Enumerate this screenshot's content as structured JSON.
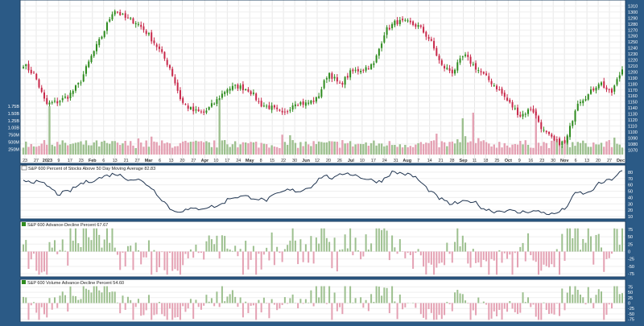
{
  "chart_data": [
    {
      "type": "candlestick",
      "title": "",
      "date_labels": [
        "23",
        "27",
        "2023",
        "9",
        "17",
        "23",
        "Feb",
        "6",
        "13",
        "21",
        "27",
        "Mar",
        "6",
        "13",
        "20",
        "27",
        "Apr",
        "10",
        "17",
        "24",
        "May",
        "8",
        "15",
        "22",
        "30",
        "Jun",
        "12",
        "20",
        "26",
        "Jul",
        "10",
        "17",
        "24",
        "31",
        "Aug",
        "7",
        "14",
        "21",
        "28",
        "Sep",
        "11",
        "18",
        "25",
        "Oct",
        "9",
        "16",
        "23",
        "30",
        "Nov",
        "6",
        "13",
        "20",
        "27",
        "Dec"
      ],
      "price_axis": {
        "ticks": [
          1070,
          1080,
          1090,
          1100,
          1110,
          1120,
          1130,
          1140,
          1150,
          1160,
          1170,
          1180,
          1190,
          1200,
          1210,
          1220,
          1230,
          1240,
          1250,
          1260,
          1270,
          1280,
          1290,
          1300,
          1310
        ],
        "ylim": [
          1065,
          1316
        ]
      },
      "closes_anchor": [
        1213,
        1195,
        1146,
        1150,
        1160,
        1182,
        1225,
        1262,
        1305,
        1290,
        1283,
        1264,
        1238,
        1206,
        1150,
        1135,
        1132,
        1150,
        1172,
        1176,
        1170,
        1146,
        1140,
        1128,
        1150,
        1147,
        1155,
        1200,
        1178,
        1200,
        1205,
        1212,
        1268,
        1284,
        1282,
        1276,
        1253,
        1210,
        1200,
        1228,
        1208,
        1190,
        1172,
        1148,
        1127,
        1140,
        1102,
        1084,
        1081,
        1150,
        1162,
        1184,
        1163,
        1205
      ],
      "volume_axis": {
        "ticks": [
          "1.75B",
          "1.50B",
          "1.25B",
          "1.00B",
          "750M",
          "500M",
          "250M"
        ]
      }
    },
    {
      "type": "line",
      "legend": "S&P 600 Percent of Stocks Above 50 Day Moving Average 82.83",
      "y_ticks": [
        80,
        70,
        60,
        50,
        40,
        30,
        20,
        10
      ],
      "ylim": [
        10,
        85
      ],
      "anchor_values": [
        68,
        65,
        60,
        45,
        50,
        62,
        67,
        73,
        78,
        70,
        68,
        58,
        38,
        18,
        20,
        22,
        25,
        27,
        40,
        42,
        40,
        35,
        45,
        52,
        50,
        58,
        75,
        70,
        80,
        74,
        68,
        65,
        80,
        78,
        73,
        55,
        40,
        30,
        32,
        35,
        22,
        18,
        20,
        16,
        19,
        17,
        13,
        22,
        48,
        46,
        62,
        68,
        82
      ]
    },
    {
      "type": "bar",
      "legend": "S&P 600 Advance-Decline Percent 67.67",
      "y_ticks": [
        75,
        50,
        25,
        0,
        -25,
        -50,
        -75
      ],
      "ylim": [
        -80,
        80
      ]
    },
    {
      "type": "bar",
      "legend": "S&P 600 Volume Advance-Decline Percent 54.60",
      "y_ticks": [
        75,
        50,
        25,
        0,
        -25,
        -50,
        -75
      ],
      "ylim": [
        -80,
        80
      ]
    }
  ],
  "colors": {
    "up": "#2e8b1e",
    "down": "#c8284a",
    "vol_up": "#9dc08f",
    "vol_down": "#e4a1b3",
    "line": "#1f3450",
    "frame": "#2b5a86",
    "grid": "#e8e8e8"
  }
}
